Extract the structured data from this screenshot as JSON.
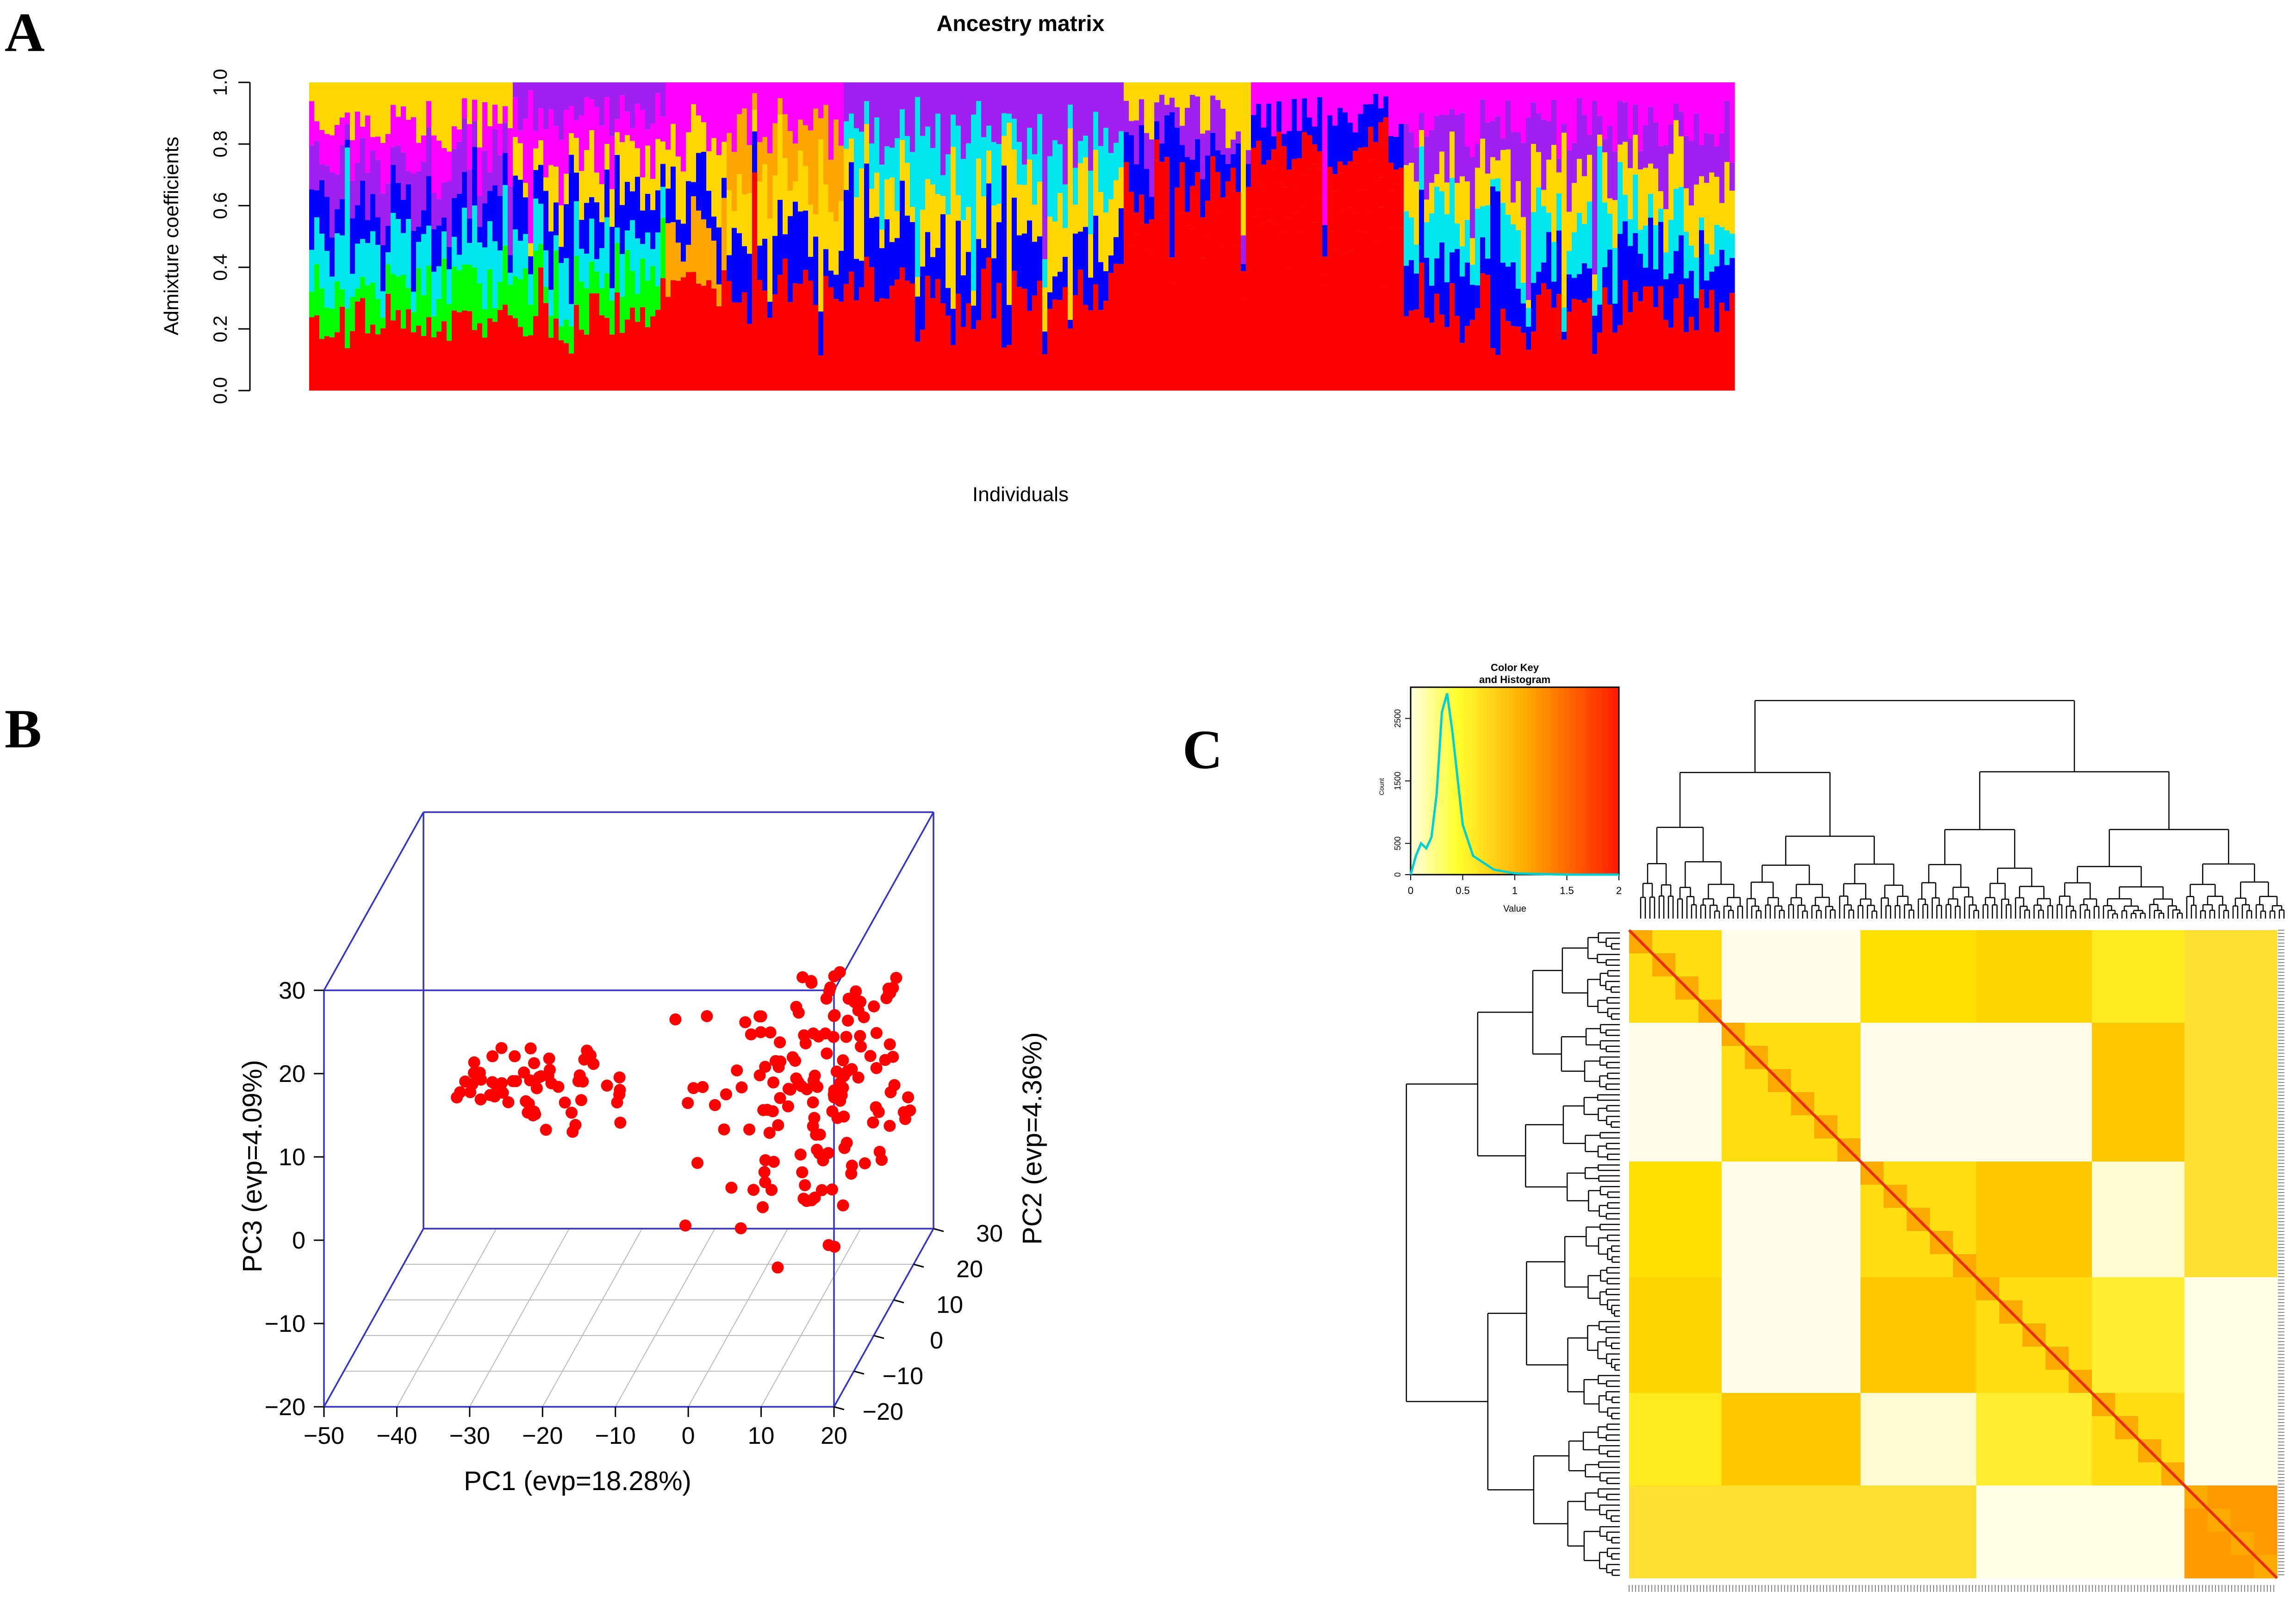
{
  "panels": {
    "a": "A",
    "b": "B",
    "c": "C"
  },
  "colors": {
    "ancestry": [
      "#ff0000",
      "#0000ff",
      "#ffd700",
      "#00e5ee",
      "#ff00ff",
      "#a020f0",
      "#00ff00",
      "#ffa500"
    ],
    "points": "#ff0000",
    "box": "#3333cc",
    "grid": "#bbbbbb"
  },
  "chart_data": [
    {
      "id": "A",
      "type": "bar",
      "stacked": true,
      "title": "Ancestry matrix",
      "xlabel": "Individuals",
      "ylabel": "Admixture coefficients",
      "ylim": [
        0,
        1
      ],
      "yticks": [
        "0.0",
        "0.2",
        "0.4",
        "0.6",
        "0.8",
        "1.0"
      ],
      "n_individuals": 280,
      "n_clusters": 8,
      "segments": [
        {
          "to": 40,
          "order": [
            0,
            6,
            3,
            1,
            5,
            4,
            2
          ]
        },
        {
          "to": 70,
          "order": [
            0,
            6,
            3,
            1,
            2,
            4,
            5
          ]
        },
        {
          "to": 82,
          "order": [
            0,
            7,
            1,
            2,
            4
          ]
        },
        {
          "to": 105,
          "order": [
            0,
            1,
            2,
            7,
            4
          ]
        },
        {
          "to": 160,
          "order": [
            0,
            1,
            2,
            3,
            5
          ]
        },
        {
          "to": 185,
          "order": [
            0,
            0,
            1,
            5,
            2
          ]
        },
        {
          "to": 215,
          "order": [
            0,
            0,
            0,
            1,
            4
          ]
        },
        {
          "to": 280,
          "order": [
            0,
            1,
            3,
            2,
            5,
            4
          ]
        }
      ]
    },
    {
      "id": "B",
      "type": "scatter",
      "projection": "3d",
      "xlabel": "PC1 (evp=18.28%)",
      "ylabel": "PC2 (evp=4.36%)",
      "zlabel": "PC3 (evp=4.09%)",
      "xlim": [
        -50,
        20
      ],
      "ylim": [
        -20,
        30
      ],
      "zlim": [
        -20,
        30
      ],
      "xticks": [
        "−50",
        "−40",
        "−30",
        "−20",
        "−10",
        "0",
        "10",
        "20"
      ],
      "yticks": [
        "−20",
        "−10",
        "0",
        "10",
        "20",
        "30"
      ],
      "zticks": [
        "−20",
        "−10",
        "0",
        "10",
        "20",
        "30"
      ],
      "n_points": 250
    },
    {
      "id": "C",
      "type": "heatmap",
      "key_title": "Color Key\nand Histogram",
      "key_title_line1": "Color Key",
      "key_title_line2": "and Histogram",
      "key_xlabel": "Value",
      "key_ylabel": "Count",
      "key_xticks": [
        "0",
        "0.5",
        "1",
        "1.5",
        "2"
      ],
      "key_yticks": [
        "0",
        "500",
        "1500",
        "2500"
      ],
      "value_range": [
        0,
        2
      ],
      "histogram": {
        "x": [
          0,
          0.05,
          0.1,
          0.15,
          0.2,
          0.25,
          0.3,
          0.35,
          0.4,
          0.5,
          0.6,
          0.8,
          1.0,
          1.5,
          2.0
        ],
        "y": [
          0,
          300,
          500,
          420,
          600,
          1300,
          2600,
          2900,
          2300,
          800,
          300,
          80,
          20,
          0,
          0
        ]
      },
      "colormap": [
        "#ffffe0",
        "#ffff00",
        "#ffa500",
        "#ff0000"
      ],
      "n_samples": 280
    }
  ]
}
